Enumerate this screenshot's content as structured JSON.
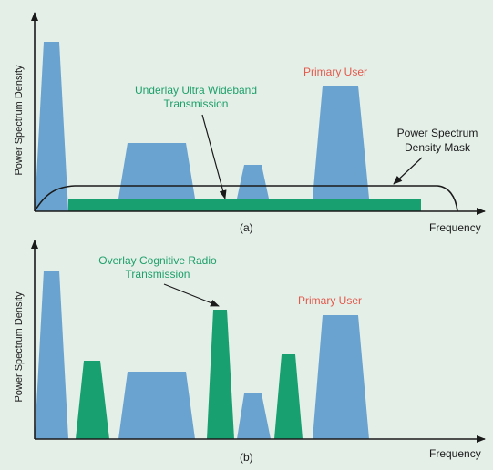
{
  "colors": {
    "background": "#e4efe8",
    "primary_user_fill": "#6aa3cf",
    "secondary_fill": "#18a071",
    "green_text": "#1fa06a",
    "red_text": "#e4584a",
    "axis": "#1a1a1a"
  },
  "panel_a": {
    "caption": "(a)",
    "y_axis_label": "Power Spectrum Density",
    "x_axis_label": "Frequency",
    "underlay_label": "Underlay Ultra Wideband\nTransmission",
    "primary_user_label": "Primary User",
    "mask_label": "Power Spectrum\nDensity Mask"
  },
  "panel_b": {
    "caption": "(b)",
    "y_axis_label": "Power Spectrum Density",
    "x_axis_label": "Frequency",
    "overlay_label": "Overlay Cognitive Radio\nTransmission",
    "primary_user_label": "Primary User"
  }
}
